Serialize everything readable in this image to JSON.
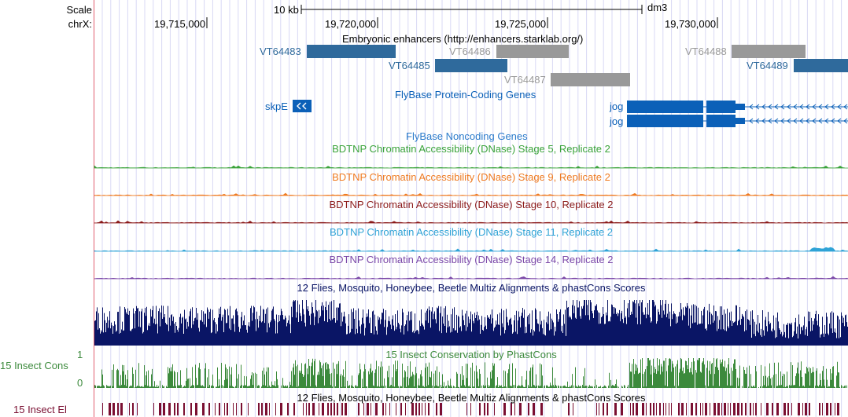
{
  "ruler": {
    "scale_label": "Scale",
    "chrom_label": "chrX:",
    "scalebar_label": "10 kb",
    "assembly": "dm3",
    "positions": [
      "19,715,000",
      "19,720,000",
      "19,725,000",
      "19,730,000"
    ]
  },
  "tracks": {
    "enhancers": {
      "title": "Embryonic enhancers (http://enhancers.starklab.org/)",
      "items": [
        {
          "name": "VT64483",
          "color": "#2f6a9c"
        },
        {
          "name": "VT64485",
          "color": "#2f6a9c"
        },
        {
          "name": "VT64486",
          "color": "#999999"
        },
        {
          "name": "VT64487",
          "color": "#999999"
        },
        {
          "name": "VT64488",
          "color": "#999999"
        },
        {
          "name": "VT64489",
          "color": "#2f6a9c"
        }
      ]
    },
    "coding_genes": {
      "title": "FlyBase Protein-Coding Genes",
      "genes": [
        {
          "name": "skpE"
        },
        {
          "name": "jog"
        },
        {
          "name": "jog"
        }
      ],
      "color": "#0b60b8"
    },
    "noncoding_genes": {
      "title": "FlyBase Noncoding Genes",
      "color": "#2b7bcb"
    },
    "dnase": [
      {
        "title": "BDTNP Chromatin Accessibility (DNase) Stage 5, Replicate 2",
        "color": "#3aa33a"
      },
      {
        "title": "BDTNP Chromatin Accessibility (DNase) Stage 9, Replicate 2",
        "color": "#ef7b22"
      },
      {
        "title": "BDTNP Chromatin Accessibility (DNase) Stage 10, Replicate 2",
        "color": "#8b1a1a"
      },
      {
        "title": "BDTNP Chromatin Accessibility (DNase) Stage 11, Replicate 2",
        "color": "#2fa3d6"
      },
      {
        "title": "BDTNP Chromatin Accessibility (DNase) Stage 14, Replicate 2",
        "color": "#7b48a8"
      }
    ],
    "multiz": {
      "title": "12 Flies, Mosquito, Honeybee, Beetle Multiz Alignments & phastCons Scores",
      "color": "#0a1565"
    },
    "phastcons": {
      "title": "15 Insect Conservation by PhastCons",
      "side_label": "15 Insect Cons",
      "ymax": "1",
      "ymin": "0",
      "color": "#3c8a3c"
    },
    "elements": {
      "title": "12 Flies, Mosquito, Honeybee, Beetle Multiz Alignments & phastCons Scores",
      "side_label": "15 Insect El",
      "color": "#7a0f32"
    }
  }
}
